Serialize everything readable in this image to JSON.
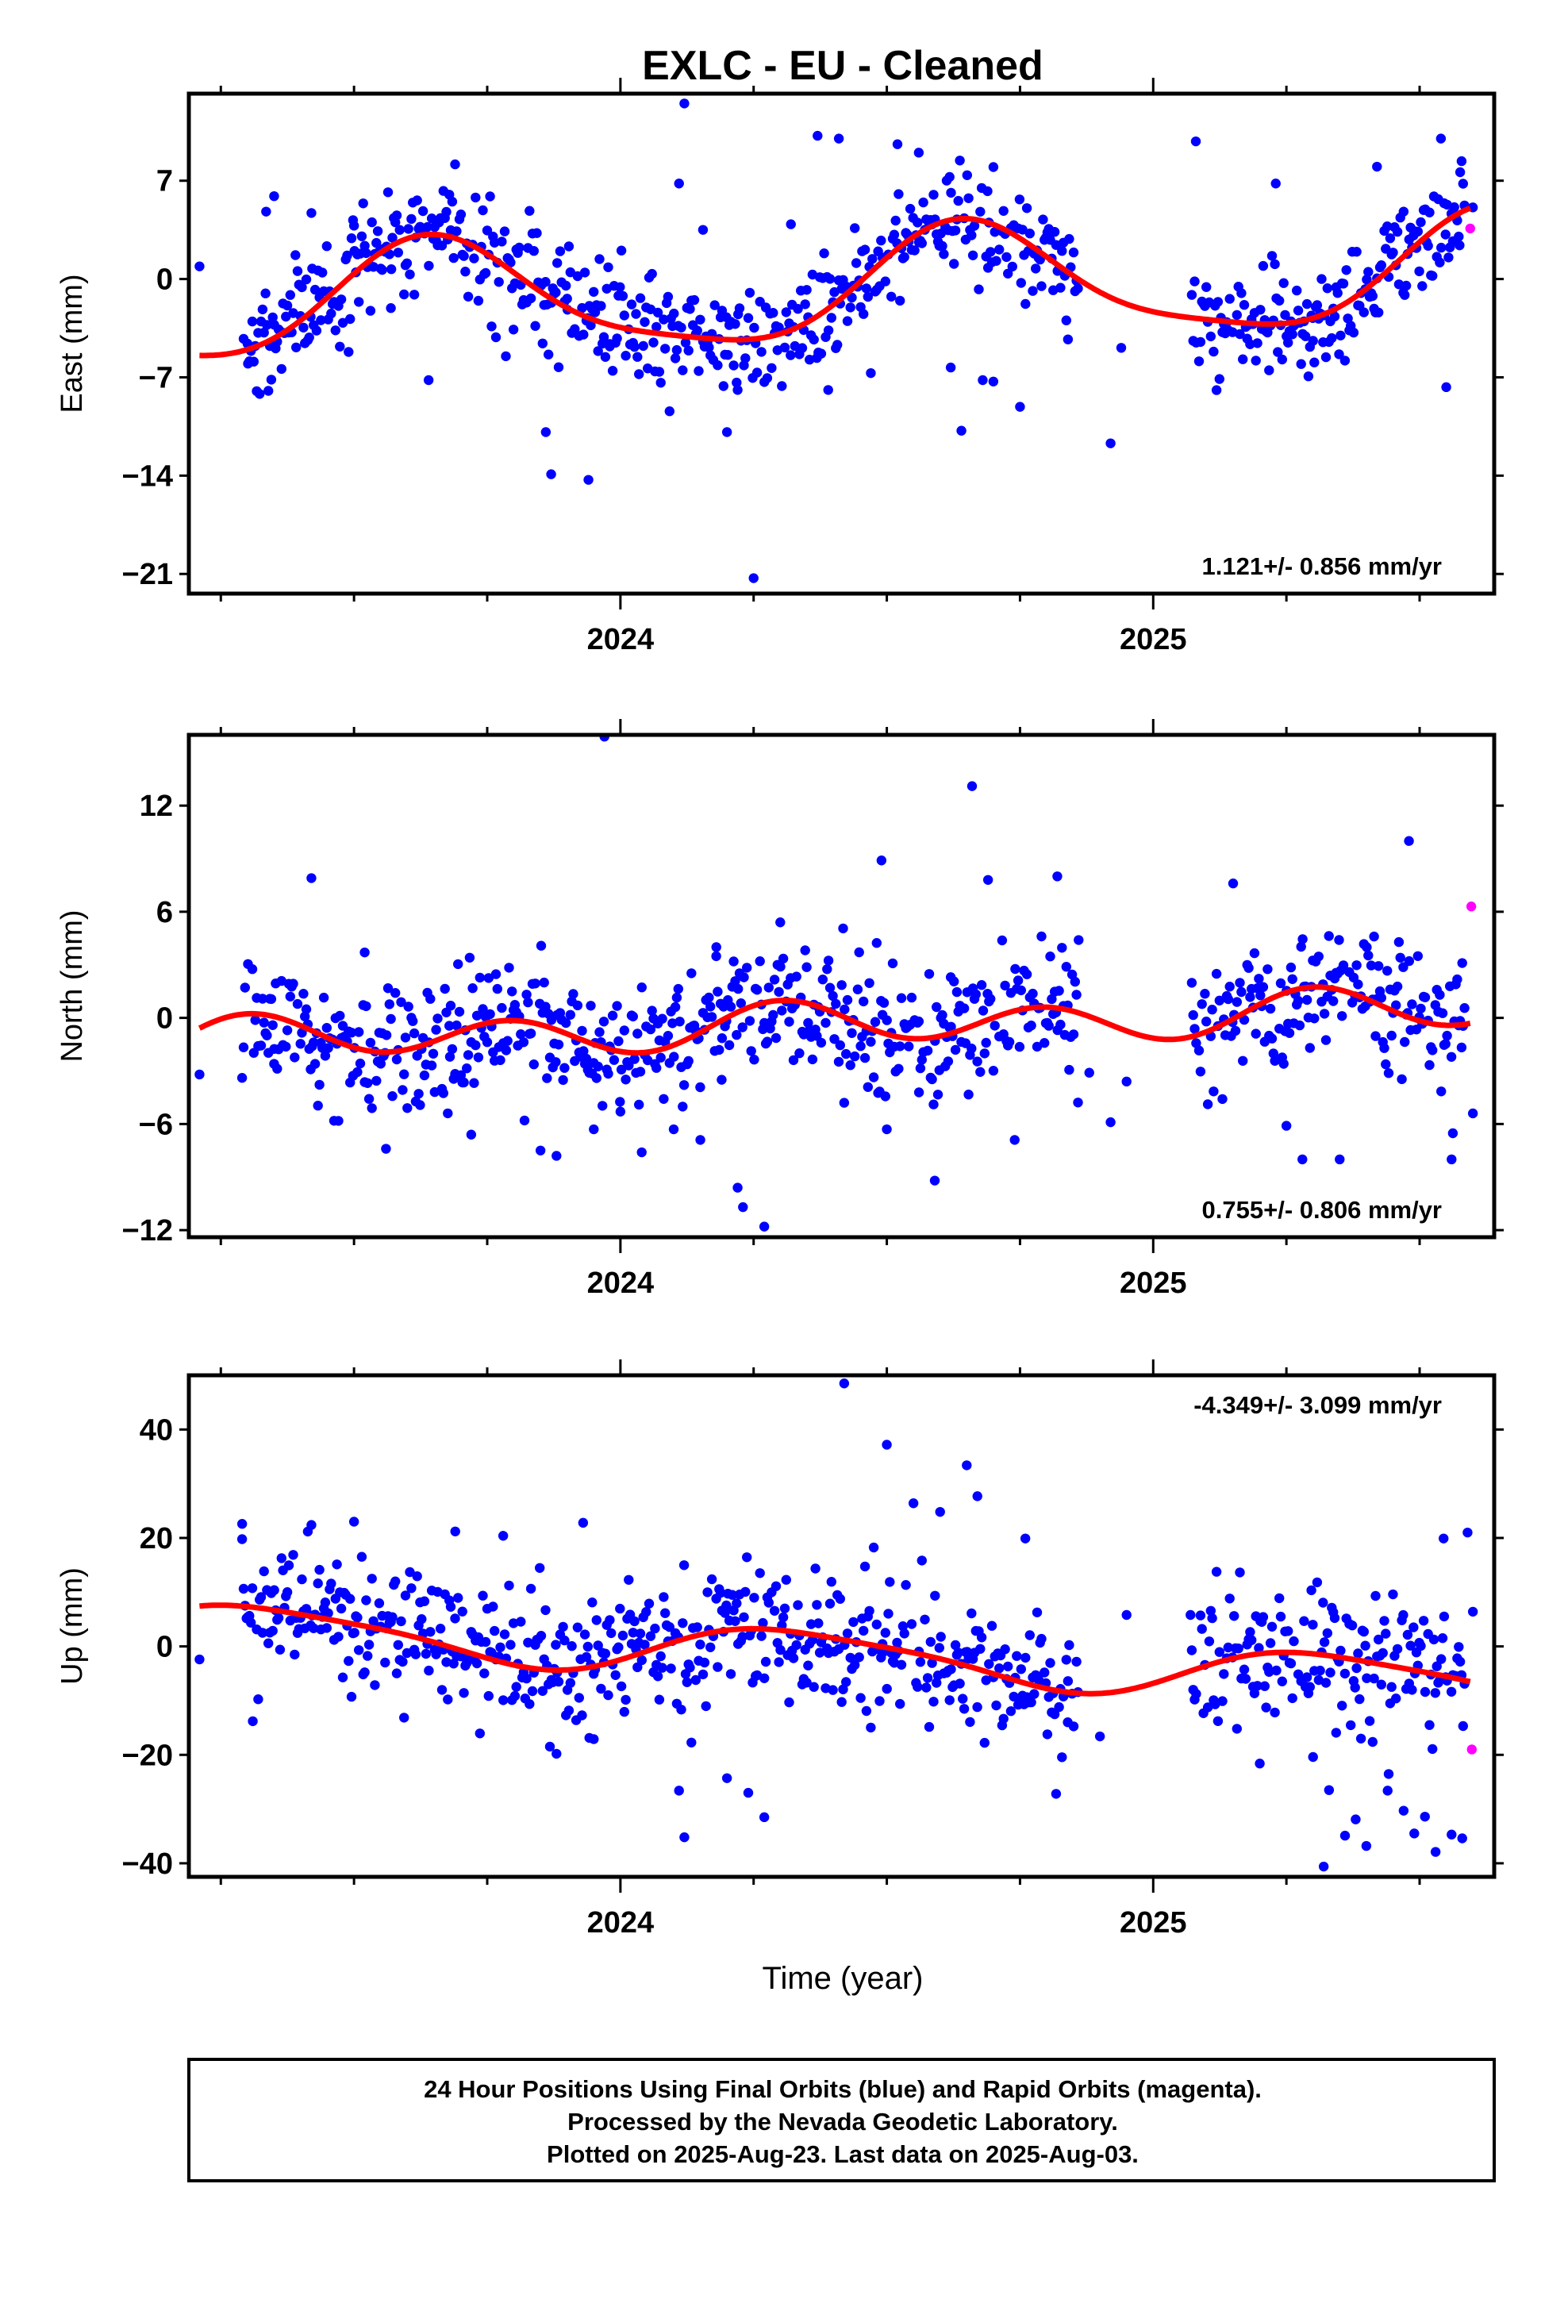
{
  "title": "EXLC  - EU - Cleaned",
  "xlabel": "Time (year)",
  "footer": {
    "line1": "24 Hour Positions Using Final Orbits (blue) and Rapid Orbits (magenta).",
    "line2": "Processed by the Nevada Geodetic Laboratory.",
    "line3": "Plotted on 2025-Aug-23. Last data on 2025-Aug-03."
  },
  "colors": {
    "final": "#0000ff",
    "rapid": "#ff00ff",
    "fit": "#ff0000",
    "frame": "#000000"
  },
  "chart_data": [
    {
      "type": "scatter",
      "ylabel": "East (mm)",
      "rate": "1.121+/- 0.856 mm/yr",
      "rate_position": "bottom-right",
      "xlim": [
        2023.19,
        2025.64
      ],
      "ylim": [
        -22.4,
        13.2
      ],
      "yticks": [
        -21,
        -14,
        -7,
        0,
        7
      ],
      "ytick_labels": [
        "-21",
        "-14",
        "-7",
        "0",
        "7"
      ],
      "xticks": [
        2024,
        2025
      ],
      "xtick_labels": [
        "2024",
        "2025"
      ],
      "grid": false,
      "fit": {
        "offset": -0.8,
        "rate": 1.121,
        "annual": [
          -3.3,
          -2.2
        ],
        "semiannual": [
          0.9,
          0.0
        ],
        "ref": 2024.4
      },
      "series": [
        {
          "values": [
            [
              2023.21,
              0.9
            ],
            [
              2023.3,
              -4.6
            ],
            [
              2023.35,
              5.9
            ],
            [
              2023.335,
              4.8
            ],
            [
              2023.39,
              1.7
            ],
            [
              2023.42,
              4.7
            ],
            [
              2023.5,
              3.8
            ],
            [
              2023.57,
              0.7
            ],
            [
              2023.64,
              -7.2
            ],
            [
              2023.785,
              -5.5
            ],
            [
              2023.86,
              -10.9
            ],
            [
              2023.87,
              -13.9
            ],
            [
              2023.94,
              -14.3
            ],
            [
              2023.9,
              -1.4
            ],
            [
              2023.98,
              -4.8
            ],
            [
              2024.11,
              6.8
            ],
            [
              2024.12,
              12.5
            ],
            [
              2024.155,
              3.5
            ],
            [
              2024.2,
              -10.9
            ],
            [
              2024.22,
              -7.9
            ],
            [
              2024.25,
              -21.3
            ],
            [
              2024.32,
              3.9
            ],
            [
              2024.37,
              10.2
            ],
            [
              2024.39,
              -7.9
            ],
            [
              2024.41,
              10.0
            ],
            [
              2024.47,
              -6.7
            ],
            [
              2024.52,
              9.6
            ],
            [
              2024.56,
              9.0
            ],
            [
              2024.62,
              -6.3
            ],
            [
              2024.64,
              -10.8
            ],
            [
              2024.68,
              -7.2
            ],
            [
              2024.69,
              0.8
            ],
            [
              2024.7,
              -7.3
            ],
            [
              2024.75,
              -9.1
            ],
            [
              2024.84,
              -4.3
            ],
            [
              2024.92,
              -11.7
            ],
            [
              2024.94,
              -4.9
            ],
            [
              2025.08,
              9.8
            ],
            [
              2025.23,
              6.8
            ],
            [
              2025.3,
              -4.4
            ],
            [
              2025.42,
              8.0
            ],
            [
              2025.47,
              4.8
            ],
            [
              2025.54,
              10.0
            ],
            [
              2025.55,
              -7.7
            ],
            [
              2025.575,
              2.4
            ],
            [
              2025.6,
              5.1
            ]
          ]
        },
        {
          "values": [
            [
              2025.595,
              3.6
            ]
          ]
        }
      ]
    },
    {
      "type": "scatter",
      "ylabel": "North (mm)",
      "rate": "0.755+/- 0.806 mm/yr",
      "rate_position": "bottom-right",
      "xlim": [
        2023.19,
        2025.64
      ],
      "ylim": [
        -12.4,
        16.0
      ],
      "yticks": [
        -12,
        -6,
        0,
        6,
        12
      ],
      "ytick_labels": [
        "-12",
        "-6",
        "0",
        "6",
        "12"
      ],
      "xticks": [
        2024,
        2025
      ],
      "xtick_labels": [
        "2024",
        "2025"
      ],
      "grid": false,
      "fit": {
        "offset": -0.4,
        "rate": 0.755,
        "annual": [
          0.3,
          -0.3
        ],
        "semiannual": [
          -0.6,
          -0.9
        ],
        "ref": 2024.4
      },
      "series": [
        {
          "values": [
            [
              2023.21,
              -3.2
            ],
            [
              2023.35,
              -2.6
            ],
            [
              2023.42,
              7.9
            ],
            [
              2023.52,
              3.7
            ],
            [
              2023.56,
              -7.4
            ],
            [
              2023.6,
              -5.1
            ],
            [
              2023.68,
              -2.2
            ],
            [
              2023.72,
              -6.6
            ],
            [
              2023.82,
              -5.8
            ],
            [
              2023.85,
              -7.5
            ],
            [
              2023.88,
              -7.8
            ],
            [
              2023.95,
              -6.3
            ],
            [
              2023.97,
              15.9
            ],
            [
              2024.0,
              -5.3
            ],
            [
              2024.04,
              -7.6
            ],
            [
              2024.1,
              -6.3
            ],
            [
              2024.15,
              -6.9
            ],
            [
              2024.18,
              4.0
            ],
            [
              2024.19,
              -3.5
            ],
            [
              2024.22,
              -9.6
            ],
            [
              2024.23,
              -10.7
            ],
            [
              2024.27,
              -11.8
            ],
            [
              2024.3,
              5.4
            ],
            [
              2024.42,
              -4.8
            ],
            [
              2024.49,
              8.9
            ],
            [
              2024.5,
              -6.3
            ],
            [
              2024.56,
              -0.2
            ],
            [
              2024.59,
              -9.2
            ],
            [
              2024.62,
              2.3
            ],
            [
              2024.66,
              13.1
            ],
            [
              2024.69,
              7.8
            ],
            [
              2024.74,
              -6.9
            ],
            [
              2024.82,
              8.0
            ],
            [
              2024.86,
              4.4
            ],
            [
              2024.88,
              -3.1
            ],
            [
              2024.92,
              -5.9
            ],
            [
              2024.95,
              -3.6
            ],
            [
              2025.15,
              7.6
            ],
            [
              2025.25,
              -6.1
            ],
            [
              2025.28,
              -8.0
            ],
            [
              2025.35,
              -8.0
            ],
            [
              2025.48,
              10.0
            ],
            [
              2025.56,
              -8.0
            ],
            [
              2025.58,
              3.1
            ],
            [
              2025.6,
              -5.4
            ]
          ]
        },
        {
          "values": [
            [
              2025.597,
              6.3
            ]
          ]
        }
      ]
    },
    {
      "type": "scatter",
      "ylabel": "Up (mm)",
      "rate": "-4.349+/- 3.099 mm/yr",
      "rate_position": "top-right",
      "xlim": [
        2023.19,
        2025.64
      ],
      "ylim": [
        -42.5,
        50.0
      ],
      "yticks": [
        -40,
        -20,
        0,
        20,
        40
      ],
      "ytick_labels": [
        "-40",
        "-20",
        "0",
        "20",
        "40"
      ],
      "xticks": [
        2024,
        2025
      ],
      "xtick_labels": [
        "2024",
        "2025"
      ],
      "grid": false,
      "fit": {
        "offset": -1.6,
        "rate": -4.349,
        "annual": [
          3.8,
          -2.2
        ],
        "semiannual": [
          0.8,
          -0.4
        ],
        "ref": 2024.4
      },
      "series": [
        {
          "values": [
            [
              2023.21,
              -2.4
            ],
            [
              2023.29,
              22.6
            ],
            [
              2023.31,
              -13.8
            ],
            [
              2023.42,
              22.4
            ],
            [
              2023.5,
              23.0
            ],
            [
              2023.69,
              21.2
            ],
            [
              2023.78,
              20.4
            ],
            [
              2023.93,
              22.8
            ],
            [
              2023.88,
              -19.8
            ],
            [
              2023.95,
              -17.1
            ],
            [
              2024.11,
              -26.6
            ],
            [
              2024.12,
              -35.2
            ],
            [
              2024.2,
              -24.3
            ],
            [
              2024.24,
              -27.0
            ],
            [
              2024.27,
              -31.5
            ],
            [
              2024.42,
              48.5
            ],
            [
              2024.5,
              37.2
            ],
            [
              2024.55,
              26.4
            ],
            [
              2024.6,
              24.8
            ],
            [
              2024.65,
              33.4
            ],
            [
              2024.67,
              27.7
            ],
            [
              2024.76,
              19.9
            ],
            [
              2024.84,
              -6.4
            ],
            [
              2024.9,
              -16.6
            ],
            [
              2024.95,
              5.8
            ],
            [
              2025.07,
              5.8
            ],
            [
              2025.2,
              -21.6
            ],
            [
              2025.3,
              -20.4
            ],
            [
              2025.33,
              -26.5
            ],
            [
              2025.36,
              -34.9
            ],
            [
              2025.38,
              -31.9
            ],
            [
              2025.4,
              -36.8
            ],
            [
              2025.44,
              -26.6
            ],
            [
              2025.45,
              9.6
            ],
            [
              2025.47,
              -30.3
            ],
            [
              2025.49,
              -34.5
            ],
            [
              2025.51,
              -31.4
            ],
            [
              2025.53,
              -37.9
            ],
            [
              2025.545,
              19.9
            ],
            [
              2025.56,
              -34.7
            ],
            [
              2025.58,
              -35.4
            ],
            [
              2025.59,
              21.0
            ],
            [
              2025.6,
              6.4
            ],
            [
              2025.32,
              -40.6
            ]
          ]
        },
        {
          "values": [
            [
              2025.598,
              -19.0
            ]
          ]
        }
      ]
    }
  ]
}
